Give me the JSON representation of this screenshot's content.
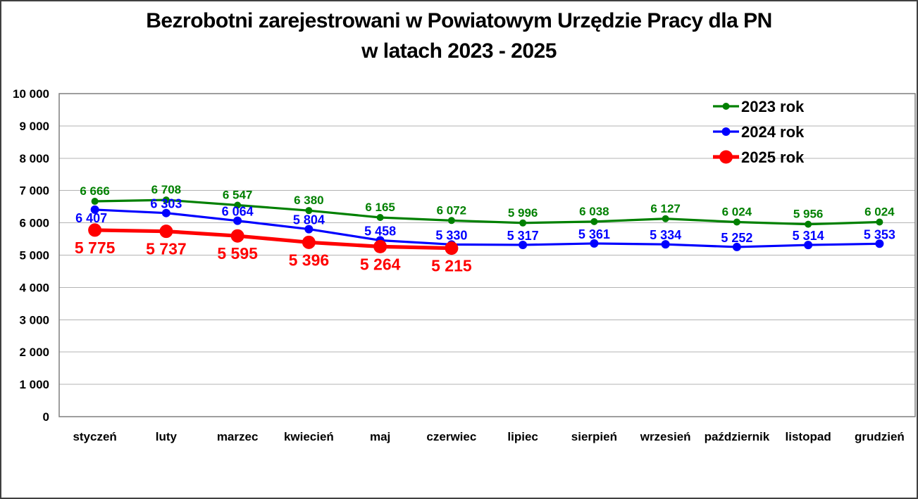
{
  "window": {
    "background": "#ffffff",
    "border_color": "#3f3f3f"
  },
  "chart_data": {
    "type": "line",
    "title": "Bezrobotni zarejestrowani w Powiatowym Urzędzie Pracy dla PN",
    "subtitle": "w latach 2023 - 2025",
    "categories": [
      "styczeń",
      "luty",
      "marzec",
      "kwiecień",
      "maj",
      "czerwiec",
      "lipiec",
      "sierpień",
      "wrzesień",
      "październik",
      "listopad",
      "grudzień"
    ],
    "y_axis": {
      "min": 0,
      "max": 10000,
      "step": 1000,
      "tick_labels": [
        "0",
        "1 000",
        "2 000",
        "3 000",
        "4 000",
        "5 000",
        "6 000",
        "7 000",
        "8 000",
        "9 000",
        "10 000"
      ]
    },
    "grid": true,
    "grid_color": "#b3b3b3",
    "frame_color": "#7f7f7f",
    "legend": {
      "position": "top-right",
      "entries": [
        "2023 rok",
        "2024 rok",
        "2025 rok"
      ]
    },
    "series": [
      {
        "name": "2023 rok",
        "color": "#008000",
        "values": [
          6666,
          6708,
          6547,
          6380,
          6165,
          6072,
          5996,
          6038,
          6127,
          6024,
          5956,
          6024
        ],
        "data_labels": [
          "6 666",
          "6 708",
          "6 547",
          "6 380",
          "6 165",
          "6 072",
          "5 996",
          "6 038",
          "6 127",
          "6 024",
          "5 956",
          "6 024"
        ],
        "marker_radius": 5,
        "line_width": 3.2,
        "label_font_size": 17,
        "label_position": "above",
        "label_gap": 9
      },
      {
        "name": "2024 rok",
        "color": "#0000ff",
        "values": [
          6407,
          6303,
          6064,
          5804,
          5458,
          5330,
          5317,
          5361,
          5334,
          5252,
          5314,
          5353
        ],
        "data_labels": [
          "6 407",
          "6 303",
          "6 064",
          "5 804",
          "5 458",
          "5 330",
          "5 317",
          "5 361",
          "5 334",
          "5 252",
          "5 314",
          "5 353"
        ],
        "marker_radius": 6,
        "line_width": 3.2,
        "label_font_size": 18,
        "label_position": "above",
        "label_gap": 7,
        "label_overrides": {
          "0": {
            "position": "below",
            "gap": 18,
            "dx": -5
          }
        }
      },
      {
        "name": "2025 rok",
        "color": "#ff0000",
        "values": [
          5775,
          5737,
          5595,
          5396,
          5264,
          5215
        ],
        "data_labels": [
          "5 775",
          "5 737",
          "5 595",
          "5 396",
          "5 264",
          "5 215"
        ],
        "marker_radius": 9.5,
        "line_width": 5.2,
        "label_font_size": 23,
        "label_position": "below",
        "label_gap": 33
      }
    ]
  }
}
